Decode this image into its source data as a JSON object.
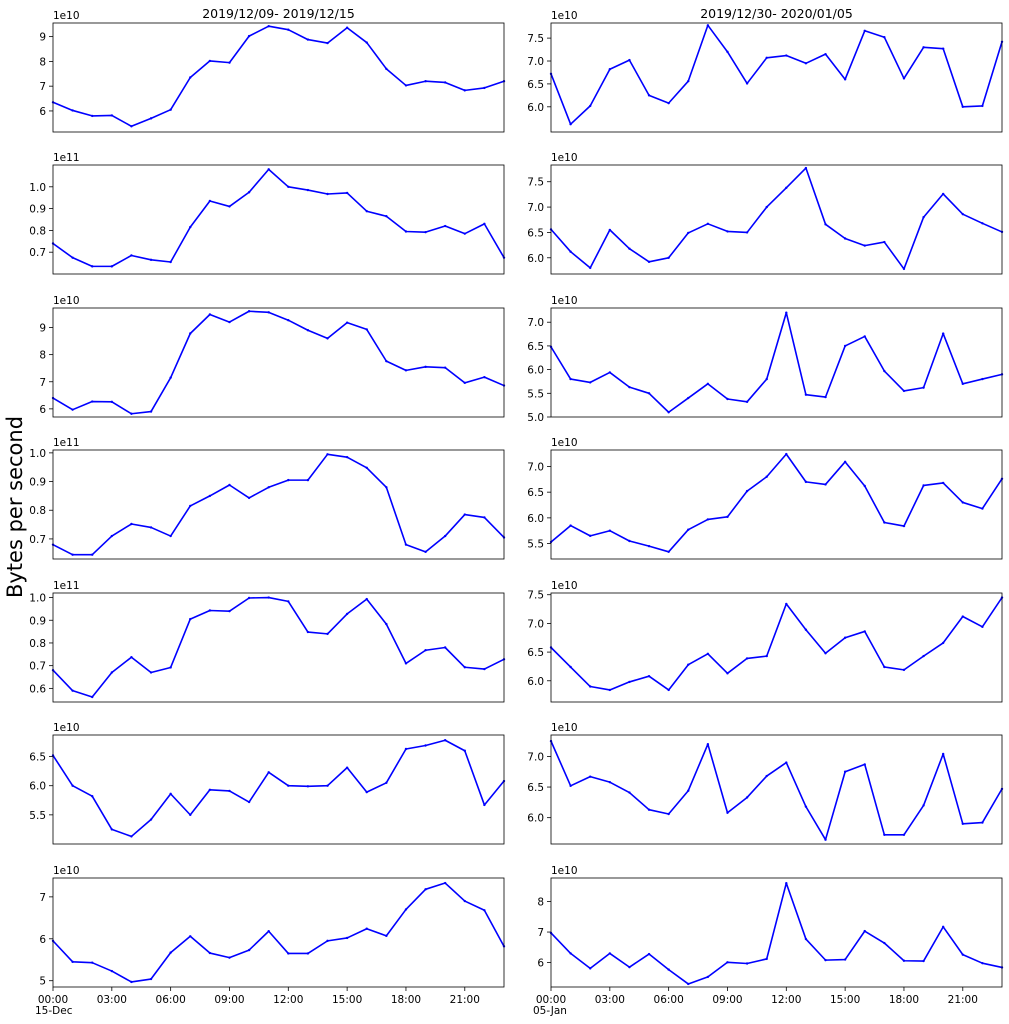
{
  "figure": {
    "ylabel": "Bytes per second",
    "columns": [
      {
        "title": "2019/12/09- 2019/12/15",
        "date_label": "15-Dec"
      },
      {
        "title": "2019/12/30- 2020/01/05",
        "date_label": "05-Jan"
      }
    ],
    "x_tick_labels": [
      "00:00",
      "03:00",
      "06:00",
      "09:00",
      "12:00",
      "15:00",
      "18:00",
      "21:00"
    ],
    "line_color": "#0000ff"
  },
  "chart_data": [
    {
      "type": "line",
      "row": 1,
      "col": 1,
      "title": "2019/12/09- 2019/12/15",
      "multiplier": "1e10",
      "x": [
        "00:00",
        "01:00",
        "02:00",
        "03:00",
        "04:00",
        "05:00",
        "06:00",
        "07:00",
        "08:00",
        "09:00",
        "10:00",
        "11:00",
        "12:00",
        "13:00",
        "14:00",
        "15:00",
        "16:00",
        "17:00",
        "18:00",
        "19:00",
        "20:00",
        "21:00",
        "22:00",
        "23:00"
      ],
      "ylim": [
        5.15,
        9.55
      ],
      "yticks": [
        "6",
        "7",
        "8",
        "9"
      ],
      "values": [
        6.35,
        6.02,
        5.8,
        5.82,
        5.38,
        5.7,
        6.05,
        7.35,
        8.02,
        7.95,
        9.02,
        9.42,
        9.28,
        8.88,
        8.74,
        9.36,
        8.76,
        7.7,
        7.03,
        7.2,
        7.15,
        6.83,
        6.93,
        7.2
      ]
    },
    {
      "type": "line",
      "row": 1,
      "col": 2,
      "title": "2019/12/30- 2020/01/05",
      "multiplier": "1e10",
      "x": [
        "00:00",
        "01:00",
        "02:00",
        "03:00",
        "04:00",
        "05:00",
        "06:00",
        "07:00",
        "08:00",
        "09:00",
        "10:00",
        "11:00",
        "12:00",
        "13:00",
        "14:00",
        "15:00",
        "16:00",
        "17:00",
        "18:00",
        "19:00",
        "20:00",
        "21:00",
        "22:00",
        "23:00"
      ],
      "ylim": [
        5.45,
        7.83
      ],
      "yticks": [
        "6.0",
        "6.5",
        "7.0",
        "7.5"
      ],
      "values": [
        6.72,
        5.62,
        6.02,
        6.82,
        7.02,
        6.25,
        6.08,
        6.56,
        7.78,
        7.2,
        6.51,
        7.07,
        7.12,
        6.95,
        7.15,
        6.6,
        7.66,
        7.52,
        6.62,
        7.3,
        7.27,
        6.0,
        6.02,
        7.42
      ]
    },
    {
      "type": "line",
      "row": 2,
      "col": 1,
      "multiplier": "1e11",
      "x": [
        "00:00",
        "01:00",
        "02:00",
        "03:00",
        "04:00",
        "05:00",
        "06:00",
        "07:00",
        "08:00",
        "09:00",
        "10:00",
        "11:00",
        "12:00",
        "13:00",
        "14:00",
        "15:00",
        "16:00",
        "17:00",
        "18:00",
        "19:00",
        "20:00",
        "21:00",
        "22:00",
        "23:00"
      ],
      "ylim": [
        0.6,
        1.1
      ],
      "yticks": [
        "0.7",
        "0.8",
        "0.9",
        "1.0"
      ],
      "values": [
        0.74,
        0.675,
        0.635,
        0.635,
        0.685,
        0.665,
        0.655,
        0.815,
        0.935,
        0.91,
        0.975,
        1.08,
        1.0,
        0.985,
        0.967,
        0.972,
        0.888,
        0.865,
        0.795,
        0.792,
        0.82,
        0.785,
        0.83,
        0.675
      ]
    },
    {
      "type": "line",
      "row": 2,
      "col": 2,
      "multiplier": "1e10",
      "x": [
        "00:00",
        "01:00",
        "02:00",
        "03:00",
        "04:00",
        "05:00",
        "06:00",
        "07:00",
        "08:00",
        "09:00",
        "10:00",
        "11:00",
        "12:00",
        "13:00",
        "14:00",
        "15:00",
        "16:00",
        "17:00",
        "18:00",
        "19:00",
        "20:00",
        "21:00",
        "22:00",
        "23:00"
      ],
      "ylim": [
        5.68,
        7.83
      ],
      "yticks": [
        "6.0",
        "6.5",
        "7.0",
        "7.5"
      ],
      "values": [
        6.56,
        6.12,
        5.8,
        6.55,
        6.18,
        5.92,
        6.0,
        6.49,
        6.67,
        6.52,
        6.5,
        7.0,
        7.38,
        7.77,
        6.66,
        6.38,
        6.24,
        6.31,
        5.78,
        6.8,
        7.26,
        6.86,
        6.68,
        6.51
      ]
    },
    {
      "type": "line",
      "row": 3,
      "col": 1,
      "multiplier": "1e10",
      "x": [
        "00:00",
        "01:00",
        "02:00",
        "03:00",
        "04:00",
        "05:00",
        "06:00",
        "07:00",
        "08:00",
        "09:00",
        "10:00",
        "11:00",
        "12:00",
        "13:00",
        "14:00",
        "15:00",
        "16:00",
        "17:00",
        "18:00",
        "19:00",
        "20:00",
        "21:00",
        "22:00",
        "23:00"
      ],
      "ylim": [
        5.7,
        9.72
      ],
      "yticks": [
        "6",
        "7",
        "8",
        "9"
      ],
      "values": [
        6.4,
        5.97,
        6.27,
        6.26,
        5.82,
        5.9,
        7.15,
        8.78,
        9.48,
        9.2,
        9.6,
        9.56,
        9.27,
        8.9,
        8.6,
        9.18,
        8.93,
        7.76,
        7.42,
        7.55,
        7.52,
        6.96,
        7.17,
        6.86
      ]
    },
    {
      "type": "line",
      "row": 3,
      "col": 2,
      "multiplier": "1e10",
      "x": [
        "00:00",
        "01:00",
        "02:00",
        "03:00",
        "04:00",
        "05:00",
        "06:00",
        "07:00",
        "08:00",
        "09:00",
        "10:00",
        "11:00",
        "12:00",
        "13:00",
        "14:00",
        "15:00",
        "16:00",
        "17:00",
        "18:00",
        "19:00",
        "20:00",
        "21:00",
        "22:00",
        "23:00"
      ],
      "ylim": [
        5.0,
        7.3
      ],
      "yticks": [
        "5.0",
        "5.5",
        "6.0",
        "6.5",
        "7.0"
      ],
      "values": [
        6.48,
        5.8,
        5.73,
        5.94,
        5.63,
        5.5,
        5.1,
        5.4,
        5.7,
        5.38,
        5.32,
        5.8,
        7.2,
        5.47,
        5.42,
        6.5,
        6.7,
        5.97,
        5.55,
        5.62,
        6.76,
        5.7,
        5.8,
        5.9
      ]
    },
    {
      "type": "line",
      "row": 4,
      "col": 1,
      "multiplier": "1e11",
      "x": [
        "00:00",
        "01:00",
        "02:00",
        "03:00",
        "04:00",
        "05:00",
        "06:00",
        "07:00",
        "08:00",
        "09:00",
        "10:00",
        "11:00",
        "12:00",
        "13:00",
        "14:00",
        "15:00",
        "16:00",
        "17:00",
        "18:00",
        "19:00",
        "20:00",
        "21:00",
        "22:00",
        "23:00"
      ],
      "ylim": [
        0.63,
        1.01
      ],
      "yticks": [
        "0.7",
        "0.8",
        "0.9",
        "1.0"
      ],
      "values": [
        0.68,
        0.645,
        0.645,
        0.71,
        0.752,
        0.74,
        0.71,
        0.815,
        0.85,
        0.888,
        0.843,
        0.88,
        0.905,
        0.905,
        0.995,
        0.985,
        0.948,
        0.88,
        0.68,
        0.655,
        0.71,
        0.785,
        0.775,
        0.705
      ]
    },
    {
      "type": "line",
      "row": 4,
      "col": 2,
      "multiplier": "1e10",
      "x": [
        "00:00",
        "01:00",
        "02:00",
        "03:00",
        "04:00",
        "05:00",
        "06:00",
        "07:00",
        "08:00",
        "09:00",
        "10:00",
        "11:00",
        "12:00",
        "13:00",
        "14:00",
        "15:00",
        "16:00",
        "17:00",
        "18:00",
        "19:00",
        "20:00",
        "21:00",
        "22:00",
        "23:00"
      ],
      "ylim": [
        5.2,
        7.32
      ],
      "yticks": [
        "5.5",
        "6.0",
        "6.5",
        "7.0"
      ],
      "values": [
        5.53,
        5.85,
        5.65,
        5.75,
        5.55,
        5.45,
        5.34,
        5.77,
        5.97,
        6.02,
        6.52,
        6.8,
        7.24,
        6.7,
        6.65,
        7.09,
        6.62,
        5.91,
        5.84,
        6.63,
        6.68,
        6.3,
        6.18,
        6.76
      ]
    },
    {
      "type": "line",
      "row": 5,
      "col": 1,
      "multiplier": "1e11",
      "x": [
        "00:00",
        "01:00",
        "02:00",
        "03:00",
        "04:00",
        "05:00",
        "06:00",
        "07:00",
        "08:00",
        "09:00",
        "10:00",
        "11:00",
        "12:00",
        "13:00",
        "14:00",
        "15:00",
        "16:00",
        "17:00",
        "18:00",
        "19:00",
        "20:00",
        "21:00",
        "22:00",
        "23:00"
      ],
      "ylim": [
        0.54,
        1.02
      ],
      "yticks": [
        "0.6",
        "0.7",
        "0.8",
        "0.9",
        "1.0"
      ],
      "values": [
        0.68,
        0.59,
        0.562,
        0.67,
        0.737,
        0.67,
        0.692,
        0.905,
        0.943,
        0.94,
        0.998,
        1.0,
        0.983,
        0.848,
        0.84,
        0.928,
        0.993,
        0.883,
        0.71,
        0.768,
        0.78,
        0.693,
        0.685,
        0.728
      ]
    },
    {
      "type": "line",
      "row": 5,
      "col": 2,
      "multiplier": "1e10",
      "x": [
        "00:00",
        "01:00",
        "02:00",
        "03:00",
        "04:00",
        "05:00",
        "06:00",
        "07:00",
        "08:00",
        "09:00",
        "10:00",
        "11:00",
        "12:00",
        "13:00",
        "14:00",
        "15:00",
        "16:00",
        "17:00",
        "18:00",
        "19:00",
        "20:00",
        "21:00",
        "22:00",
        "23:00"
      ],
      "ylim": [
        5.63,
        7.53
      ],
      "yticks": [
        "6.0",
        "6.5",
        "7.0",
        "7.5"
      ],
      "values": [
        6.58,
        6.24,
        5.9,
        5.84,
        5.98,
        6.08,
        5.84,
        6.28,
        6.47,
        6.13,
        6.39,
        6.43,
        7.34,
        6.89,
        6.48,
        6.75,
        6.86,
        6.24,
        6.19,
        6.43,
        6.66,
        7.12,
        6.94,
        7.45
      ]
    },
    {
      "type": "line",
      "row": 6,
      "col": 1,
      "multiplier": "1e10",
      "x": [
        "00:00",
        "01:00",
        "02:00",
        "03:00",
        "04:00",
        "05:00",
        "06:00",
        "07:00",
        "08:00",
        "09:00",
        "10:00",
        "11:00",
        "12:00",
        "13:00",
        "14:00",
        "15:00",
        "16:00",
        "17:00",
        "18:00",
        "19:00",
        "20:00",
        "21:00",
        "22:00",
        "23:00"
      ],
      "ylim": [
        5.0,
        6.87
      ],
      "yticks": [
        "5.5",
        "6.0",
        "6.5"
      ],
      "values": [
        6.52,
        6.0,
        5.82,
        5.25,
        5.13,
        5.42,
        5.86,
        5.5,
        5.93,
        5.91,
        5.72,
        6.23,
        6.0,
        5.99,
        6.0,
        6.31,
        5.89,
        6.05,
        6.63,
        6.69,
        6.78,
        6.6,
        5.67,
        6.08
      ]
    },
    {
      "type": "line",
      "row": 6,
      "col": 2,
      "multiplier": "1e10",
      "x": [
        "00:00",
        "01:00",
        "02:00",
        "03:00",
        "04:00",
        "05:00",
        "06:00",
        "07:00",
        "08:00",
        "09:00",
        "10:00",
        "11:00",
        "12:00",
        "13:00",
        "14:00",
        "15:00",
        "16:00",
        "17:00",
        "18:00",
        "19:00",
        "20:00",
        "21:00",
        "22:00",
        "23:00"
      ],
      "ylim": [
        5.57,
        7.35
      ],
      "yticks": [
        "6.0",
        "6.5",
        "7.0"
      ],
      "values": [
        7.25,
        6.52,
        6.67,
        6.58,
        6.41,
        6.13,
        6.06,
        6.44,
        7.2,
        6.08,
        6.33,
        6.68,
        6.9,
        6.18,
        5.64,
        6.75,
        6.87,
        5.72,
        5.72,
        6.2,
        7.04,
        5.9,
        5.92,
        6.47
      ]
    },
    {
      "type": "line",
      "row": 7,
      "col": 1,
      "multiplier": "1e10",
      "x": [
        "00:00",
        "01:00",
        "02:00",
        "03:00",
        "04:00",
        "05:00",
        "06:00",
        "07:00",
        "08:00",
        "09:00",
        "10:00",
        "11:00",
        "12:00",
        "13:00",
        "14:00",
        "15:00",
        "16:00",
        "17:00",
        "18:00",
        "19:00",
        "20:00",
        "21:00",
        "22:00",
        "23:00"
      ],
      "ylim": [
        4.85,
        7.45
      ],
      "yticks": [
        "5",
        "6",
        "7"
      ],
      "values": [
        5.95,
        5.45,
        5.43,
        5.23,
        4.97,
        5.04,
        5.67,
        6.06,
        5.66,
        5.55,
        5.73,
        6.18,
        5.65,
        5.65,
        5.95,
        6.02,
        6.24,
        6.07,
        6.7,
        7.18,
        7.33,
        6.9,
        6.68,
        5.82
      ]
    },
    {
      "type": "line",
      "row": 7,
      "col": 2,
      "multiplier": "1e10",
      "x": [
        "00:00",
        "01:00",
        "02:00",
        "03:00",
        "04:00",
        "05:00",
        "06:00",
        "07:00",
        "08:00",
        "09:00",
        "10:00",
        "11:00",
        "12:00",
        "13:00",
        "14:00",
        "15:00",
        "16:00",
        "17:00",
        "18:00",
        "19:00",
        "20:00",
        "21:00",
        "22:00",
        "23:00"
      ],
      "ylim": [
        5.2,
        8.77
      ],
      "yticks": [
        "6",
        "7",
        "8"
      ],
      "values": [
        6.97,
        6.3,
        5.81,
        6.3,
        5.85,
        6.28,
        5.77,
        5.3,
        5.53,
        6.01,
        5.97,
        6.12,
        8.6,
        6.77,
        6.08,
        6.1,
        7.03,
        6.64,
        6.06,
        6.05,
        7.17,
        6.26,
        5.98,
        5.84
      ]
    }
  ]
}
